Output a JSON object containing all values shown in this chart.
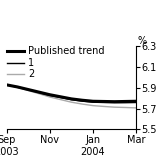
{
  "ylabel": "%",
  "ylim": [
    5.5,
    6.3
  ],
  "yticks": [
    5.5,
    5.7,
    5.9,
    6.1,
    6.3
  ],
  "xtick_labels": [
    "Sep\n2003",
    "Nov",
    "Jan\n2004",
    "Mar"
  ],
  "xtick_positions": [
    0,
    2,
    4,
    6
  ],
  "xlim": [
    0,
    6
  ],
  "x": [
    0,
    0.5,
    1,
    1.5,
    2,
    2.5,
    3,
    3.5,
    4,
    4.5,
    5,
    5.5,
    6
  ],
  "published_trend": [
    5.93,
    5.91,
    5.885,
    5.86,
    5.835,
    5.815,
    5.795,
    5.782,
    5.772,
    5.77,
    5.768,
    5.77,
    5.772
  ],
  "line1": [
    5.93,
    5.908,
    5.882,
    5.856,
    5.828,
    5.808,
    5.787,
    5.773,
    5.763,
    5.76,
    5.758,
    5.758,
    5.76
  ],
  "line2": [
    5.93,
    5.905,
    5.875,
    5.845,
    5.813,
    5.788,
    5.763,
    5.745,
    5.73,
    5.722,
    5.715,
    5.712,
    5.708
  ],
  "published_trend_color": "#000000",
  "line1_color": "#000000",
  "line2_color": "#aaaaaa",
  "published_trend_lw": 2.2,
  "line1_lw": 1.0,
  "line2_lw": 1.0,
  "legend_labels": [
    "Published trend",
    "1",
    "2"
  ],
  "background_color": "#ffffff",
  "font_size": 7
}
